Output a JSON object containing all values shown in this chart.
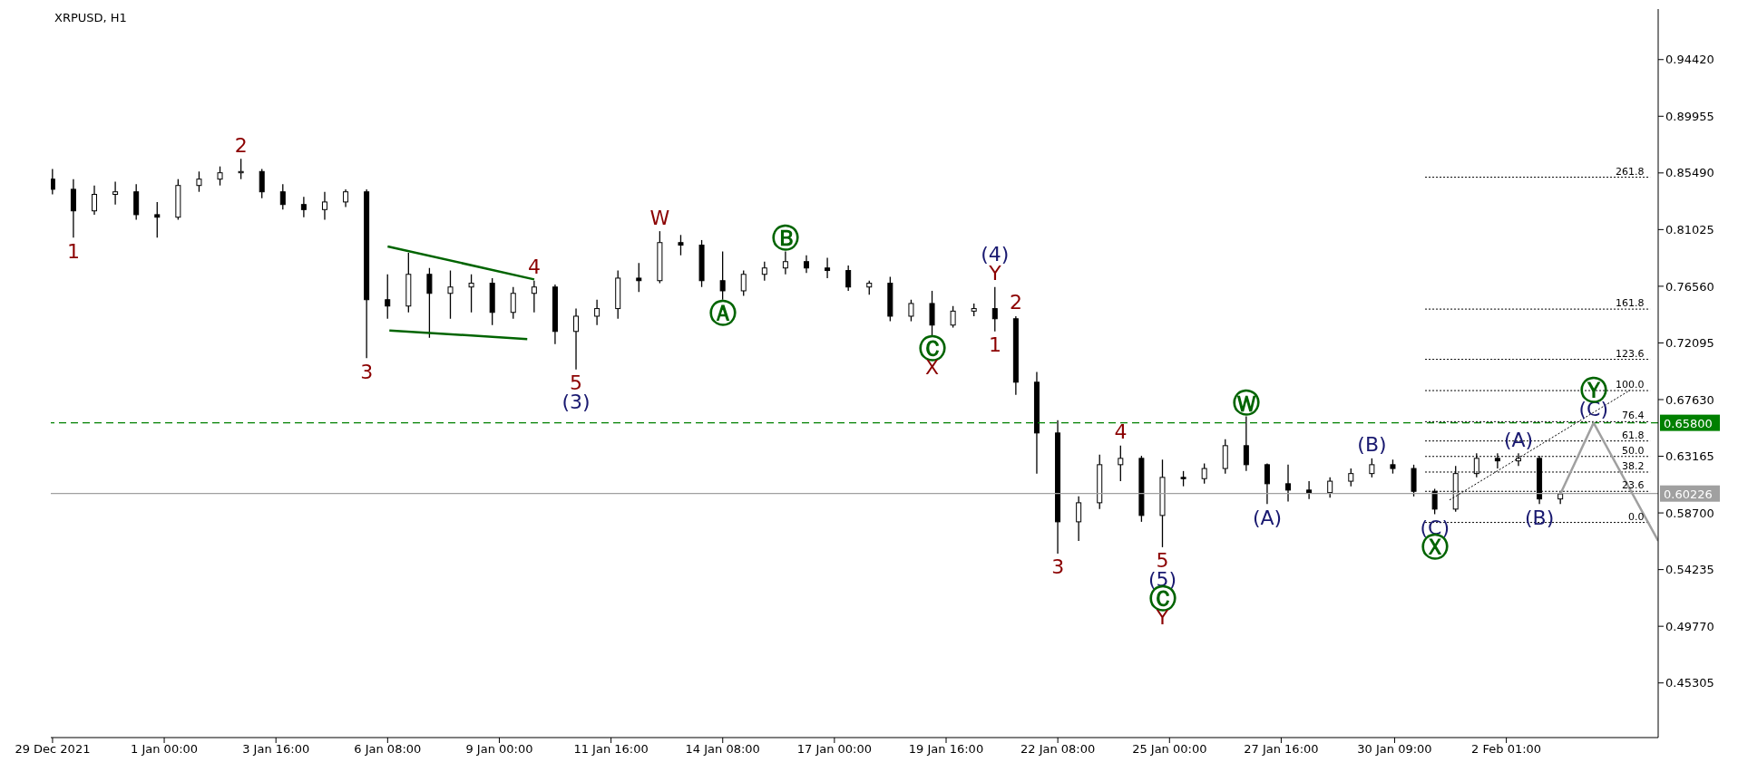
{
  "chart_data": {
    "type": "candlestick",
    "title": "XRPUSD, H1",
    "color": "#000000",
    "x": [
      "2021-12-29T08:00",
      "2021-12-29T20:00",
      "2021-12-30T08:00",
      "2021-12-30T20:00",
      "2021-12-31T08:00",
      "2021-12-31T20:00",
      "2022-01-01T08:00",
      "2022-01-01T20:00",
      "2022-01-02T08:00",
      "2022-01-02T20:00",
      "2022-01-03T08:00",
      "2022-01-03T20:00",
      "2022-01-04T08:00",
      "2022-01-04T20:00",
      "2022-01-05T08:00",
      "2022-01-05T20:00",
      "2022-01-06T08:00",
      "2022-01-06T20:00",
      "2022-01-07T08:00",
      "2022-01-07T20:00",
      "2022-01-08T08:00",
      "2022-01-08T20:00",
      "2022-01-09T08:00",
      "2022-01-09T20:00",
      "2022-01-10T08:00",
      "2022-01-10T20:00",
      "2022-01-11T08:00",
      "2022-01-11T20:00",
      "2022-01-12T08:00",
      "2022-01-12T20:00",
      "2022-01-13T08:00",
      "2022-01-13T20:00",
      "2022-01-14T08:00",
      "2022-01-14T20:00",
      "2022-01-15T08:00",
      "2022-01-15T20:00",
      "2022-01-16T08:00",
      "2022-01-16T20:00",
      "2022-01-17T08:00",
      "2022-01-17T20:00",
      "2022-01-18T08:00",
      "2022-01-18T20:00",
      "2022-01-19T08:00",
      "2022-01-19T20:00",
      "2022-01-20T08:00",
      "2022-01-20T20:00",
      "2022-01-21T08:00",
      "2022-01-21T20:00",
      "2022-01-22T08:00",
      "2022-01-22T20:00",
      "2022-01-23T08:00",
      "2022-01-23T20:00",
      "2022-01-24T08:00",
      "2022-01-24T20:00",
      "2022-01-25T08:00",
      "2022-01-25T20:00",
      "2022-01-26T08:00",
      "2022-01-26T20:00",
      "2022-01-27T08:00",
      "2022-01-27T20:00",
      "2022-01-28T08:00",
      "2022-01-28T20:00",
      "2022-01-29T08:00",
      "2022-01-29T20:00",
      "2022-01-30T08:00",
      "2022-01-30T20:00",
      "2022-01-31T08:00",
      "2022-01-31T20:00",
      "2022-02-01T08:00",
      "2022-02-01T20:00",
      "2022-02-02T08:00",
      "2022-02-02T20:00",
      "2022-02-03T08:00"
    ],
    "ohlc": [
      [
        0.85,
        0.858,
        0.838,
        0.842
      ],
      [
        0.842,
        0.85,
        0.804,
        0.825
      ],
      [
        0.825,
        0.845,
        0.822,
        0.838
      ],
      [
        0.838,
        0.848,
        0.83,
        0.84
      ],
      [
        0.84,
        0.846,
        0.818,
        0.822
      ],
      [
        0.822,
        0.832,
        0.804,
        0.82
      ],
      [
        0.82,
        0.85,
        0.818,
        0.845
      ],
      [
        0.845,
        0.856,
        0.84,
        0.85
      ],
      [
        0.85,
        0.86,
        0.845,
        0.855
      ],
      [
        0.855,
        0.866,
        0.85,
        0.856
      ],
      [
        0.856,
        0.858,
        0.835,
        0.84
      ],
      [
        0.84,
        0.846,
        0.826,
        0.83
      ],
      [
        0.83,
        0.836,
        0.82,
        0.826
      ],
      [
        0.826,
        0.84,
        0.818,
        0.832
      ],
      [
        0.832,
        0.842,
        0.828,
        0.84
      ],
      [
        0.84,
        0.842,
        0.709,
        0.755
      ],
      [
        0.755,
        0.775,
        0.74,
        0.75
      ],
      [
        0.75,
        0.792,
        0.745,
        0.775
      ],
      [
        0.775,
        0.78,
        0.725,
        0.76
      ],
      [
        0.76,
        0.778,
        0.74,
        0.765
      ],
      [
        0.765,
        0.775,
        0.745,
        0.768
      ],
      [
        0.768,
        0.772,
        0.735,
        0.745
      ],
      [
        0.745,
        0.765,
        0.74,
        0.76
      ],
      [
        0.76,
        0.77,
        0.745,
        0.765
      ],
      [
        0.765,
        0.767,
        0.72,
        0.73
      ],
      [
        0.73,
        0.748,
        0.7,
        0.742
      ],
      [
        0.742,
        0.755,
        0.735,
        0.748
      ],
      [
        0.748,
        0.778,
        0.74,
        0.772
      ],
      [
        0.772,
        0.784,
        0.761,
        0.77
      ],
      [
        0.77,
        0.809,
        0.768,
        0.8
      ],
      [
        0.8,
        0.806,
        0.79,
        0.798
      ],
      [
        0.798,
        0.802,
        0.765,
        0.77
      ],
      [
        0.77,
        0.793,
        0.755,
        0.762
      ],
      [
        0.762,
        0.778,
        0.758,
        0.775
      ],
      [
        0.775,
        0.785,
        0.77,
        0.78
      ],
      [
        0.78,
        0.793,
        0.775,
        0.785
      ],
      [
        0.785,
        0.79,
        0.776,
        0.78
      ],
      [
        0.78,
        0.788,
        0.772,
        0.778
      ],
      [
        0.778,
        0.782,
        0.762,
        0.765
      ],
      [
        0.765,
        0.77,
        0.759,
        0.768
      ],
      [
        0.768,
        0.773,
        0.738,
        0.742
      ],
      [
        0.742,
        0.755,
        0.738,
        0.752
      ],
      [
        0.752,
        0.762,
        0.727,
        0.735
      ],
      [
        0.735,
        0.75,
        0.733,
        0.746
      ],
      [
        0.746,
        0.752,
        0.742,
        0.748
      ],
      [
        0.748,
        0.765,
        0.73,
        0.74
      ],
      [
        0.74,
        0.742,
        0.68,
        0.69
      ],
      [
        0.69,
        0.698,
        0.618,
        0.65
      ],
      [
        0.65,
        0.66,
        0.555,
        0.58
      ],
      [
        0.58,
        0.6,
        0.565,
        0.595
      ],
      [
        0.595,
        0.633,
        0.59,
        0.625
      ],
      [
        0.625,
        0.64,
        0.612,
        0.63
      ],
      [
        0.63,
        0.632,
        0.58,
        0.585
      ],
      [
        0.585,
        0.629,
        0.56,
        0.615
      ],
      [
        0.615,
        0.62,
        0.608,
        0.614
      ],
      [
        0.614,
        0.626,
        0.61,
        0.622
      ],
      [
        0.622,
        0.645,
        0.618,
        0.64
      ],
      [
        0.64,
        0.663,
        0.62,
        0.625
      ],
      [
        0.625,
        0.626,
        0.594,
        0.61
      ],
      [
        0.61,
        0.625,
        0.596,
        0.605
      ],
      [
        0.605,
        0.612,
        0.598,
        0.603
      ],
      [
        0.603,
        0.615,
        0.599,
        0.612
      ],
      [
        0.612,
        0.622,
        0.608,
        0.618
      ],
      [
        0.618,
        0.63,
        0.615,
        0.625
      ],
      [
        0.625,
        0.629,
        0.618,
        0.622
      ],
      [
        0.622,
        0.625,
        0.6,
        0.604
      ],
      [
        0.604,
        0.606,
        0.586,
        0.59
      ],
      [
        0.59,
        0.624,
        0.588,
        0.618
      ],
      [
        0.618,
        0.634,
        0.615,
        0.63
      ],
      [
        0.63,
        0.634,
        0.622,
        0.628
      ],
      [
        0.628,
        0.634,
        0.624,
        0.63
      ],
      [
        0.63,
        0.632,
        0.594,
        0.598
      ],
      [
        0.598,
        0.604,
        0.594,
        0.602
      ]
    ],
    "series": [
      {
        "type": "line",
        "x": [
          "2022-02-03T08:00",
          "2022-02-04T03:00",
          "2022-02-05T16:00"
        ],
        "values": [
          0.602,
          0.658,
          0.565
        ],
        "color": "#a0a0a0",
        "line_style": "solid"
      },
      {
        "type": "line",
        "x": [
          "2022-01-06T08:00",
          "2022-01-09T20:00"
        ],
        "values": [
          0.797,
          0.771
        ],
        "color": "#006400",
        "line_style": "solid"
      },
      {
        "type": "line",
        "x": [
          "2022-01-06T09:00",
          "2022-01-09T16:00"
        ],
        "values": [
          0.7308,
          0.724
        ],
        "color": "#006400",
        "line_style": "solid"
      },
      {
        "type": "line",
        "x": [
          "2022-01-31T16:30",
          "2022-02-05T00:00"
        ],
        "values": [
          0.5972,
          0.6838
        ],
        "color": "#000000",
        "line_style": "dotted"
      }
    ],
    "ref_lines": [
      {
        "axis": "y",
        "value": 0.658,
        "label": "0.65800",
        "color": "#008000",
        "line_style": "dashed"
      },
      {
        "axis": "y",
        "value": 0.60226,
        "label": "0.60226",
        "color": "#a0a0a0",
        "line_style": "solid"
      },
      {
        "axis": "y",
        "value": 0.5795,
        "color": "#000000",
        "line_style": "dotted"
      },
      {
        "axis": "y",
        "value": 0.604,
        "color": "#000000",
        "line_style": "dotted"
      },
      {
        "axis": "y",
        "value": 0.6192,
        "color": "#000000",
        "line_style": "dotted"
      },
      {
        "axis": "y",
        "value": 0.6315,
        "color": "#000000",
        "line_style": "dotted"
      },
      {
        "axis": "y",
        "value": 0.6437,
        "color": "#000000",
        "line_style": "dotted"
      },
      {
        "axis": "y",
        "value": 0.6589,
        "color": "#000000",
        "line_style": "dotted"
      },
      {
        "axis": "y",
        "value": 0.6834,
        "color": "#000000",
        "line_style": "dotted"
      },
      {
        "axis": "y",
        "value": 0.708,
        "color": "#000000",
        "line_style": "dotted"
      },
      {
        "axis": "y",
        "value": 0.7476,
        "color": "#000000",
        "line_style": "dotted"
      },
      {
        "axis": "y",
        "value": 0.8515,
        "color": "#000000",
        "line_style": "dotted"
      }
    ],
    "annotations": [
      {
        "text": "1",
        "x": "2021-12-29T20:00",
        "y": 0.804
      },
      {
        "text": "2",
        "x": "2022-01-02T20:00",
        "y": 0.866
      },
      {
        "text": "3",
        "x": "2022-01-05T20:00",
        "y": 0.709
      },
      {
        "text": "4",
        "x": "2022-01-09T20:00",
        "y": 0.77
      },
      {
        "text": "5",
        "x": "2022-01-10T20:00",
        "y": 0.7
      },
      {
        "text": "(3)",
        "x": "2022-01-10T20:00",
        "y": 0.7
      },
      {
        "text": "W",
        "x": "2022-01-12T20:00",
        "y": 0.809
      },
      {
        "text": "Ⓐ",
        "x": "2022-01-14T08:00",
        "y": 0.755
      },
      {
        "text": "Ⓑ",
        "x": "2022-01-15T20:00",
        "y": 0.793
      },
      {
        "text": "Ⓒ",
        "x": "2022-01-19T08:00",
        "y": 0.727
      },
      {
        "text": "X",
        "x": "2022-01-19T08:00",
        "y": 0.727
      },
      {
        "text": "Y",
        "x": "2022-01-20T20:00",
        "y": 0.765
      },
      {
        "text": "(4)",
        "x": "2022-01-20T20:00",
        "y": 0.765
      },
      {
        "text": "1",
        "x": "2022-01-20T20:00",
        "y": 0.73
      },
      {
        "text": "2",
        "x": "2022-01-21T08:00",
        "y": 0.742
      },
      {
        "text": "3",
        "x": "2022-01-22T08:00",
        "y": 0.555
      },
      {
        "text": "4",
        "x": "2022-01-23T20:00",
        "y": 0.64
      },
      {
        "text": "5",
        "x": "2022-01-24T20:00",
        "y": 0.56
      },
      {
        "text": "(5)",
        "x": "2022-01-24T20:00",
        "y": 0.56
      },
      {
        "text": "Ⓒ",
        "x": "2022-01-24T20:00",
        "y": 0.56
      },
      {
        "text": "Y",
        "x": "2022-01-24T20:00",
        "y": 0.56
      },
      {
        "text": "Ⓦ",
        "x": "2022-01-26T20:00",
        "y": 0.663
      },
      {
        "text": "(A)",
        "x": "2022-01-27T08:00",
        "y": 0.594
      },
      {
        "text": "(B)",
        "x": "2022-01-29T20:00",
        "y": 0.63
      },
      {
        "text": "(C)",
        "x": "2022-01-31T08:00",
        "y": 0.586
      },
      {
        "text": "Ⓧ",
        "x": "2022-01-31T08:00",
        "y": 0.586
      },
      {
        "text": "(A)",
        "x": "2022-02-02T08:00",
        "y": 0.634
      },
      {
        "text": "(B)",
        "x": "2022-02-02T20:00",
        "y": 0.594
      },
      {
        "text": "(C)",
        "x": "2022-02-04T03:00",
        "y": 0.658
      },
      {
        "text": "Ⓨ",
        "x": "2022-02-04T03:00",
        "y": 0.658
      },
      {
        "text": "0.0",
        "x": "2022-02-05T08:00",
        "y": 0.5795
      },
      {
        "text": "23.6",
        "x": "2022-02-05T08:00",
        "y": 0.604
      },
      {
        "text": "38.2",
        "x": "2022-02-05T08:00",
        "y": 0.6192
      },
      {
        "text": "50.0",
        "x": "2022-02-05T08:00",
        "y": 0.6315
      },
      {
        "text": "61.8",
        "x": "2022-02-05T08:00",
        "y": 0.6437
      },
      {
        "text": "76.4",
        "x": "2022-02-05T08:00",
        "y": 0.6589
      },
      {
        "text": "100.0",
        "x": "2022-02-05T08:00",
        "y": 0.6834
      },
      {
        "text": "123.6",
        "x": "2022-02-05T08:00",
        "y": 0.708
      },
      {
        "text": "161.8",
        "x": "2022-02-05T08:00",
        "y": 0.7476
      },
      {
        "text": "261.8",
        "x": "2022-02-05T08:00",
        "y": 0.8515
      }
    ],
    "xlim": [
      "2021-12-29T07:00",
      "2022-02-05T16:00"
    ],
    "xticks": [
      {
        "value": "2021-12-29T08:00",
        "label": "29 Dec 2021"
      },
      {
        "value": "2022-01-01T00:00",
        "label": "1 Jan 00:00"
      },
      {
        "value": "2022-01-03T16:00",
        "label": "3 Jan 16:00"
      },
      {
        "value": "2022-01-06T08:00",
        "label": "6 Jan 08:00"
      },
      {
        "value": "2022-01-09T00:00",
        "label": "9 Jan 00:00"
      },
      {
        "value": "2022-01-11T16:00",
        "label": "11 Jan 16:00"
      },
      {
        "value": "2022-01-14T08:00",
        "label": "14 Jan 08:00"
      },
      {
        "value": "2022-01-17T00:00",
        "label": "17 Jan 00:00"
      },
      {
        "value": "2022-01-19T16:00",
        "label": "19 Jan 16:00"
      },
      {
        "value": "2022-01-22T08:00",
        "label": "22 Jan 08:00"
      },
      {
        "value": "2022-01-25T00:00",
        "label": "25 Jan 00:00"
      },
      {
        "value": "2022-01-27T16:00",
        "label": "27 Jan 16:00"
      },
      {
        "value": "2022-01-30T09:00",
        "label": "30 Jan 09:00"
      },
      {
        "value": "2022-02-02T01:00",
        "label": "2 Feb 01:00"
      }
    ],
    "ylim": [
      0.41,
      0.984
    ],
    "yticks": [
      {
        "value": 0.9442,
        "label": "0.94420"
      },
      {
        "value": 0.89955,
        "label": "0.89955"
      },
      {
        "value": 0.8549,
        "label": "0.85490"
      },
      {
        "value": 0.81025,
        "label": "0.81025"
      },
      {
        "value": 0.7656,
        "label": "0.76560"
      },
      {
        "value": 0.72095,
        "label": "0.72095"
      },
      {
        "value": 0.6763,
        "label": "0.67630"
      },
      {
        "value": 0.63165,
        "label": "0.63165"
      },
      {
        "value": 0.587,
        "label": "0.58700"
      },
      {
        "value": 0.54235,
        "label": "0.54235"
      },
      {
        "value": 0.4977,
        "label": "0.49770"
      },
      {
        "value": 0.45305,
        "label": "0.45305"
      }
    ]
  }
}
